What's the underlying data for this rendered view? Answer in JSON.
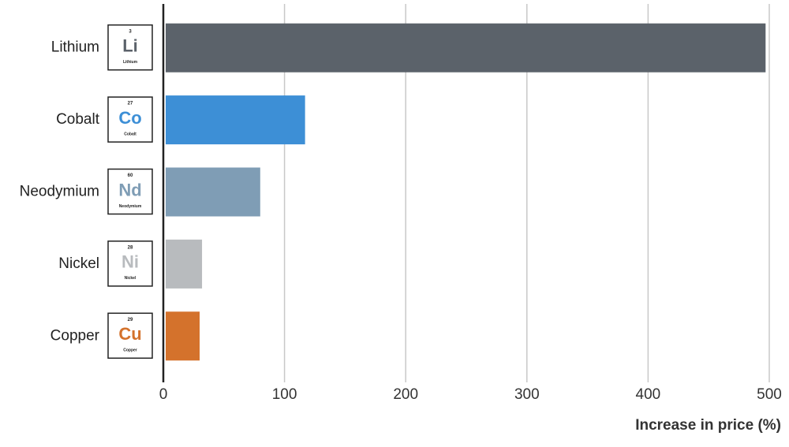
{
  "chart_data": {
    "type": "hbar",
    "categories": [
      "Lithium",
      "Cobalt",
      "Neodymium",
      "Nickel",
      "Copper"
    ],
    "values": [
      495,
      115,
      78,
      30,
      28
    ],
    "colors": [
      "#5b626a",
      "#3d8fd6",
      "#7f9db5",
      "#b8bbbe",
      "#d4722c"
    ],
    "element_tiles": [
      {
        "number": 3,
        "symbol": "Li"
      },
      {
        "number": 27,
        "symbol": "Co"
      },
      {
        "number": 60,
        "symbol": "Nd"
      },
      {
        "number": 28,
        "symbol": "Ni"
      },
      {
        "number": 29,
        "symbol": "Cu"
      }
    ],
    "xlabel": "Increase in price (%)",
    "xlim": [
      0,
      500
    ],
    "xticks": [
      0,
      100,
      200,
      300,
      400,
      500
    ],
    "grid": true
  }
}
